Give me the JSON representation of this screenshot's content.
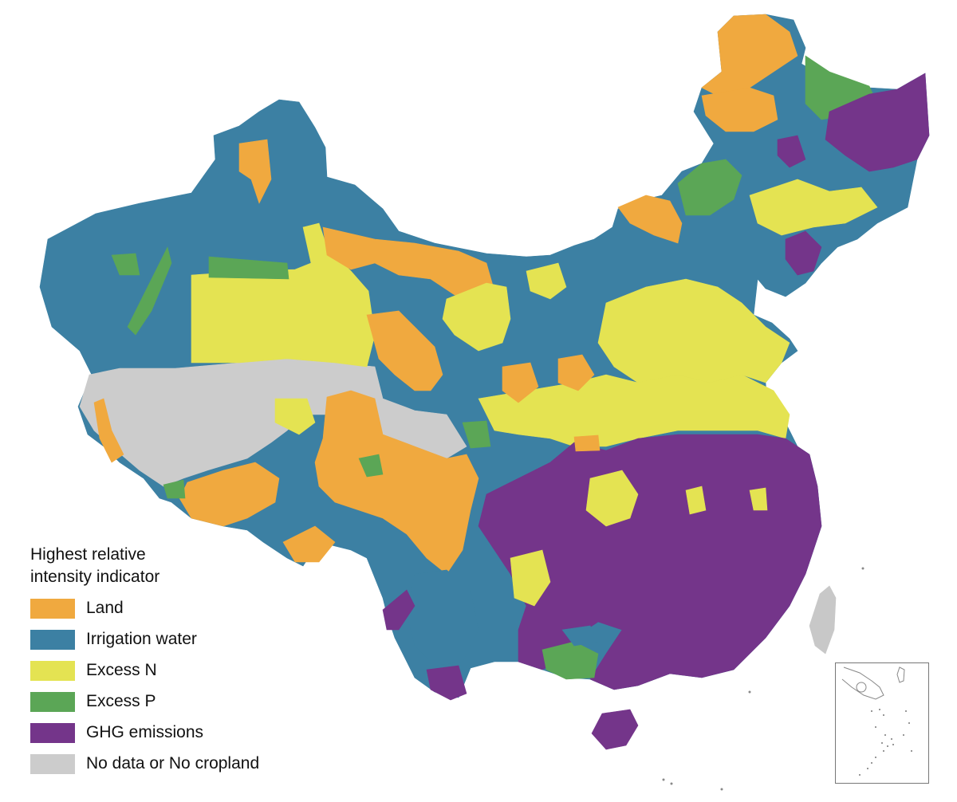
{
  "legend": {
    "title_line1": "Highest relative",
    "title_line2": "intensity indicator",
    "items": [
      {
        "label": "Land",
        "color": "#F0A93F"
      },
      {
        "label": "Irrigation water",
        "color": "#3C80A3"
      },
      {
        "label": "Excess N",
        "color": "#E4E352"
      },
      {
        "label": "Excess P",
        "color": "#5BA656"
      },
      {
        "label": "GHG emissions",
        "color": "#74358A"
      },
      {
        "label": "No data or No cropland",
        "color": "#CCCCCC"
      }
    ]
  },
  "colors": {
    "land": "#F0A93F",
    "water": "#3C80A3",
    "excess_n": "#E4E352",
    "excess_p": "#5BA656",
    "ghg": "#74358A",
    "nodata": "#CCCCCC",
    "taiwan": "#C8C8C8",
    "inset_border": "#777777"
  }
}
